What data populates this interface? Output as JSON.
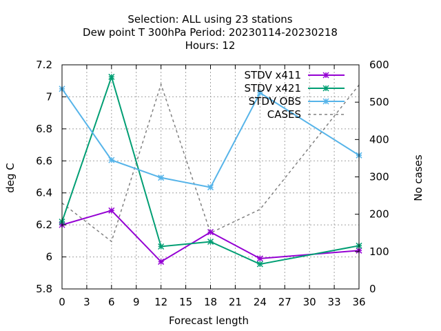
{
  "chart_data": {
    "type": "line",
    "title_lines": [
      "Selection: ALL using    23 stations",
      "Dew point T 300hPa   Period: 20230114-20230218",
      "Hours:  12"
    ],
    "xlabel": "Forecast length",
    "ylabel": "deg C",
    "y2label": "No cases",
    "x": [
      0,
      6,
      12,
      18,
      24,
      36
    ],
    "xlim": [
      0,
      36
    ],
    "xticks": [
      0,
      3,
      6,
      9,
      12,
      15,
      18,
      21,
      24,
      27,
      30,
      33,
      36
    ],
    "ylim": [
      5.8,
      7.2
    ],
    "yticks": [
      5.8,
      6,
      6.2,
      6.4,
      6.6,
      6.8,
      7,
      7.2
    ],
    "y2lim": [
      0,
      600
    ],
    "y2ticks": [
      0,
      100,
      200,
      300,
      400,
      500,
      600
    ],
    "grid": true,
    "legend_position": "top-right",
    "series": [
      {
        "name": "STDV x411",
        "color": "#9400d3",
        "marker": "x",
        "axis": "y",
        "values": [
          6.2,
          6.29,
          5.97,
          6.155,
          5.99,
          6.04
        ]
      },
      {
        "name": "STDV x421",
        "color": "#009e73",
        "marker": "x",
        "axis": "y",
        "values": [
          6.22,
          7.125,
          6.065,
          6.095,
          5.955,
          6.07
        ]
      },
      {
        "name": "STDV OBS",
        "color": "#56b4e9",
        "marker": "x",
        "axis": "y",
        "values": [
          7.05,
          6.605,
          6.495,
          6.435,
          7.025,
          6.635
        ]
      },
      {
        "name": "CASES",
        "color": "#808080",
        "marker": "none",
        "dashed": true,
        "axis": "y2",
        "values": [
          230,
          127,
          548,
          150,
          213,
          546
        ]
      }
    ]
  }
}
